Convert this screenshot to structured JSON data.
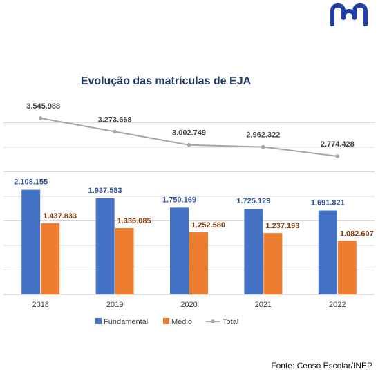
{
  "source_note": "Fonte: Censo Escolar/INEP",
  "logo": {
    "name": "brand-logo",
    "color": "#1e3fa8"
  },
  "chart_data": {
    "type": "bar+line",
    "title": "Evolução das matrículas de EJA",
    "categories": [
      "2018",
      "2019",
      "2020",
      "2021",
      "2022"
    ],
    "series": [
      {
        "name": "Fundamental",
        "kind": "bar",
        "color": "#4472c4",
        "label_color": "#2f5597",
        "values": [
          2108155,
          1937583,
          1750169,
          1725129,
          1691821
        ],
        "labels": [
          "2.108.155",
          "1.937.583",
          "1.750.169",
          "1.725.129",
          "1.691.821"
        ]
      },
      {
        "name": "Médio",
        "kind": "bar",
        "color": "#ed7d31",
        "label_color": "#843c0c",
        "values": [
          1437833,
          1336085,
          1252580,
          1237193,
          1082607
        ],
        "labels": [
          "1.437.833",
          "1.336.085",
          "1.252.580",
          "1.237.193",
          "1.082.607"
        ]
      },
      {
        "name": "Total",
        "kind": "line",
        "color": "#a5a5a5",
        "label_color": "#404040",
        "values": [
          3545988,
          3273668,
          3002749,
          2962322,
          2774428
        ],
        "labels": [
          "3.545.988",
          "3.273.668",
          "3.002.749",
          "2.962.322",
          "2.774.428"
        ]
      }
    ],
    "grid": true,
    "legend_position": "bottom"
  }
}
